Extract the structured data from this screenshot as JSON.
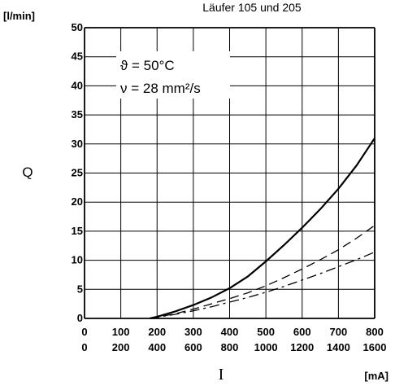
{
  "chart_data": {
    "type": "line",
    "title": "Läufer 105 und 205",
    "ylabel": "Q",
    "yunit": "[l/min]",
    "xlabel": "I",
    "xunit": "[mA]",
    "ylim": [
      0,
      50
    ],
    "xlim": [
      0,
      800
    ],
    "yticks": [
      0,
      5,
      10,
      15,
      20,
      25,
      30,
      35,
      40,
      45,
      50
    ],
    "xticks_top": [
      "0",
      "100",
      "200",
      "300",
      "400",
      "500",
      "600",
      "700",
      "800"
    ],
    "xticks_bottom": [
      "0",
      "200",
      "400",
      "600",
      "800",
      "1000",
      "1200",
      "1400",
      "1600"
    ],
    "grid": true,
    "annotations": [
      "ϑ = 50°C",
      "ν = 28 mm²/s"
    ],
    "series": [
      {
        "style": "solid",
        "x": [
          180,
          200,
          250,
          300,
          350,
          400,
          450,
          500,
          550,
          600,
          650,
          700,
          750,
          800
        ],
        "y": [
          0,
          0.3,
          1.2,
          2.3,
          3.6,
          5.2,
          7.2,
          9.8,
          12.6,
          15.6,
          18.8,
          22.3,
          26.3,
          31
        ]
      },
      {
        "style": "dashed",
        "x": [
          180,
          250,
          300,
          350,
          400,
          450,
          500,
          550,
          600,
          650,
          700,
          750,
          800
        ],
        "y": [
          0,
          0.8,
          1.6,
          2.5,
          3.4,
          4.4,
          5.6,
          7.0,
          8.5,
          10.1,
          11.8,
          13.8,
          16
        ]
      },
      {
        "style": "dash-dot",
        "x": [
          180,
          250,
          300,
          350,
          400,
          450,
          500,
          550,
          600,
          650,
          700,
          750,
          800
        ],
        "y": [
          0,
          0.7,
          1.3,
          2.0,
          2.8,
          3.6,
          4.5,
          5.5,
          6.6,
          7.7,
          8.9,
          10.1,
          11.4
        ]
      }
    ]
  }
}
